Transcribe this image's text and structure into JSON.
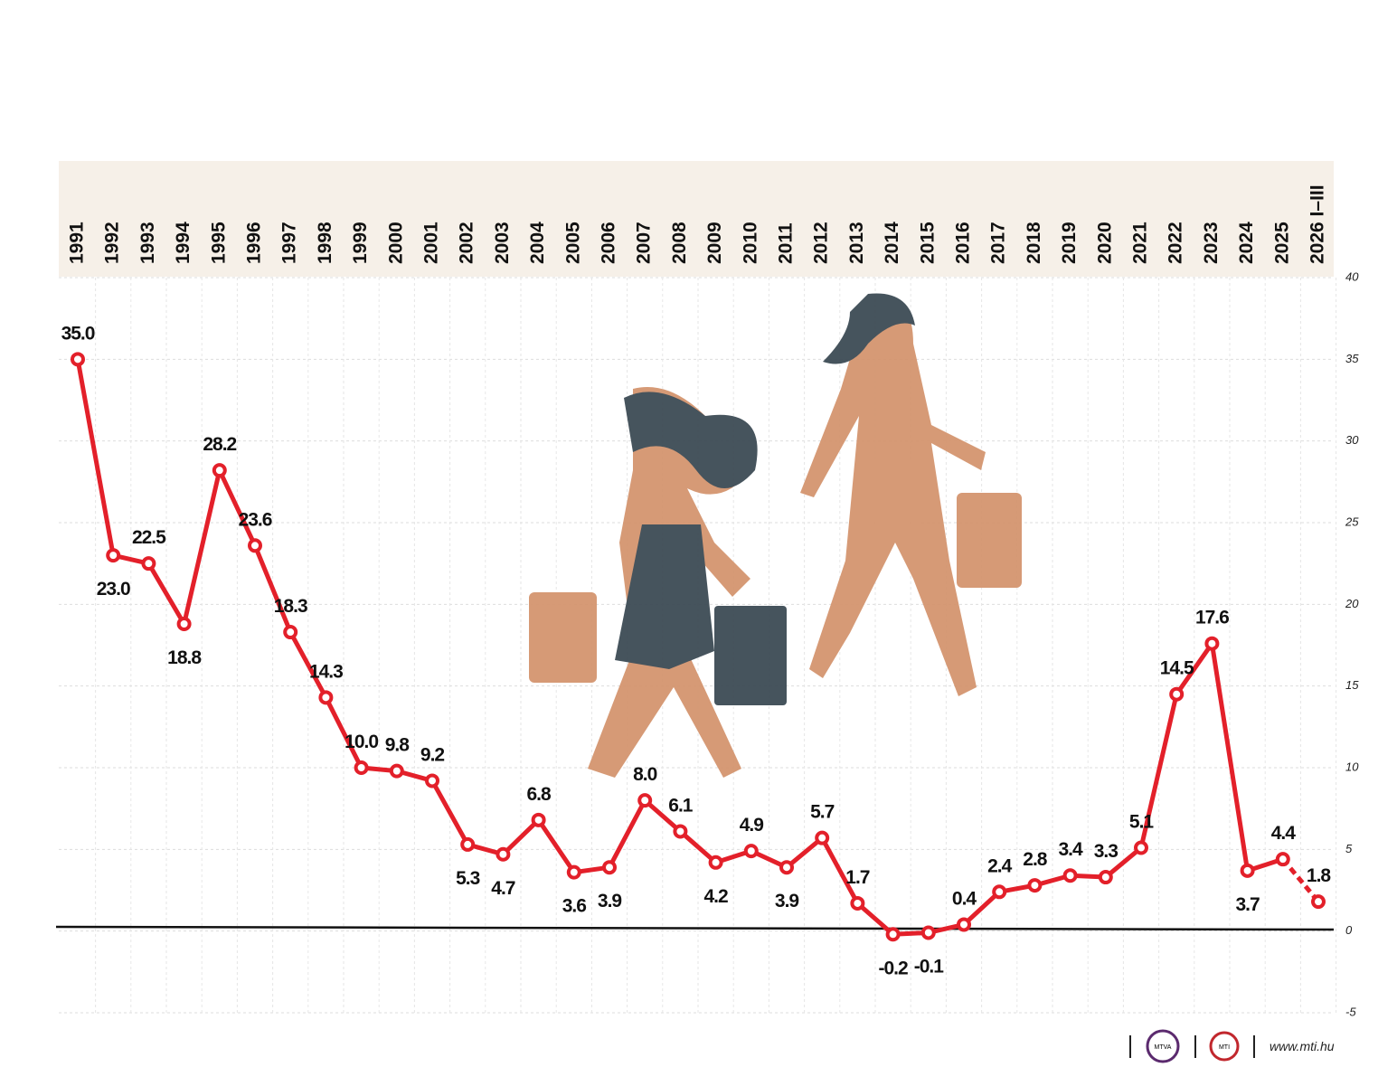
{
  "chart_data": {
    "type": "line",
    "categories": [
      "1991",
      "1992",
      "1993",
      "1994",
      "1995",
      "1996",
      "1997",
      "1998",
      "1999",
      "2000",
      "2001",
      "2002",
      "2003",
      "2004",
      "2005",
      "2006",
      "2007",
      "2008",
      "2009",
      "2010",
      "2011",
      "2012",
      "2013",
      "2014",
      "2015",
      "2016",
      "2017",
      "2018",
      "2019",
      "2020",
      "2021",
      "2022",
      "2023",
      "2024",
      "2025",
      "2026 I–III"
    ],
    "series": [
      {
        "color": "#e3202a",
        "values": [
          35.0,
          23.0,
          22.5,
          18.8,
          28.2,
          23.6,
          18.3,
          14.3,
          10.0,
          9.8,
          9.2,
          5.3,
          4.7,
          6.8,
          3.6,
          3.9,
          8.0,
          6.1,
          4.2,
          4.9,
          3.9,
          5.7,
          1.7,
          -0.2,
          -0.1,
          0.4,
          2.4,
          2.8,
          3.4,
          3.3,
          5.1,
          14.5,
          17.6,
          3.7,
          4.4,
          1.8
        ],
        "value_labels": [
          "35.0",
          "23.0",
          "22.5",
          "18.8",
          "28.2",
          "23.6",
          "18.3",
          "14.3",
          "10.0",
          "9.8",
          "9.2",
          "5.3",
          "4.7",
          "6.8",
          "3.6",
          "3.9",
          "8.0",
          "6.1",
          "4.2",
          "4.9",
          "3.9",
          "5.7",
          "1.7",
          "-0.2",
          "-0.1",
          "0.4",
          "2.4",
          "2.8",
          "3.4",
          "3.3",
          "5.1",
          "14.5",
          "17.6",
          "3.7",
          "4.4",
          "1.8"
        ]
      }
    ],
    "last_segment_dashed": true,
    "ylim": [
      -5,
      40
    ],
    "yticks": [
      -5,
      0,
      5,
      10,
      15,
      20,
      25,
      30,
      35,
      40
    ],
    "grid": true
  },
  "footer": {
    "logos": [
      "MTVA",
      "MTI"
    ],
    "url": "www.mti.hu"
  }
}
